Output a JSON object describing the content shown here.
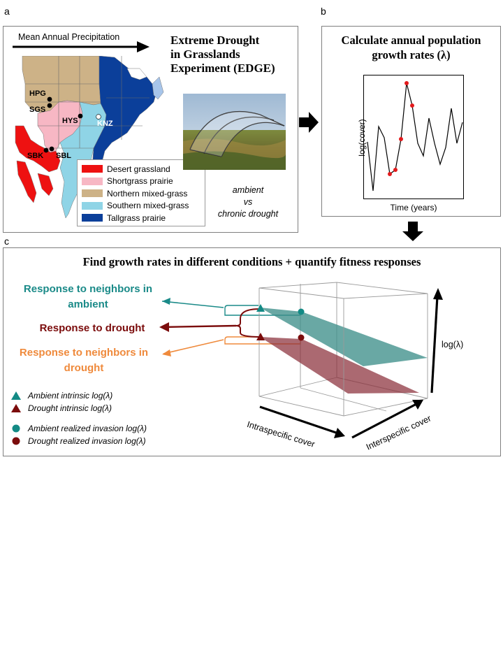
{
  "panel_a": {
    "label": "a",
    "arrow_label": "Mean Annual Precipitation",
    "title_lines": [
      "Extreme Drought",
      "in Grasslands",
      "Experiment (EDGE)"
    ],
    "legend": [
      {
        "label": "Desert grassland",
        "color": "#ee1111"
      },
      {
        "label": "Shortgrass prairie",
        "color": "#f7b7c4"
      },
      {
        "label": "Northern mixed-grass",
        "color": "#cdb287"
      },
      {
        "label": "Southern mixed-grass",
        "color": "#8fd4e6"
      },
      {
        "label": "Tallgrass prairie",
        "color": "#0b3f9a"
      }
    ],
    "sites": [
      "HPG",
      "SGS",
      "HYS",
      "KNZ",
      "SBK",
      "SBL"
    ],
    "treatment_lines": [
      "ambient",
      "vs",
      "chronic drought"
    ]
  },
  "panel_b": {
    "label": "b",
    "title_lines": [
      "Calculate annual population",
      "growth rates (λ)"
    ],
    "xlabel": "Time (years)",
    "ylabel": "log(cover)"
  },
  "panel_c": {
    "label": "c",
    "title": "Find growth rates in different conditions + quantify fitness responses",
    "responses": [
      {
        "label_lines": [
          "Response to neighbors in",
          "ambient"
        ],
        "color": "#1a8a88"
      },
      {
        "label_lines": [
          "Response to drought"
        ],
        "color": "#7b0c0c"
      },
      {
        "label_lines": [
          "Response to neighbors in",
          "drought"
        ],
        "color": "#ef8a3c"
      }
    ],
    "legend": [
      {
        "label": "Ambient intrinsic log(λ)",
        "shape": "triangle",
        "color": "#138a85"
      },
      {
        "label": "Drought intrinsic log(λ)",
        "shape": "triangle",
        "color": "#7b0c0c"
      },
      {
        "label": "Ambient realized invasion log(λ)",
        "shape": "circle",
        "color": "#138a85"
      },
      {
        "label": "Drought realized invasion log(λ)",
        "shape": "circle",
        "color": "#7b0c0c"
      }
    ],
    "axis_intraspecific": "Intraspecific cover",
    "axis_interspecific": "Interspecific cover",
    "axis_loglambda": "log(λ)"
  }
}
